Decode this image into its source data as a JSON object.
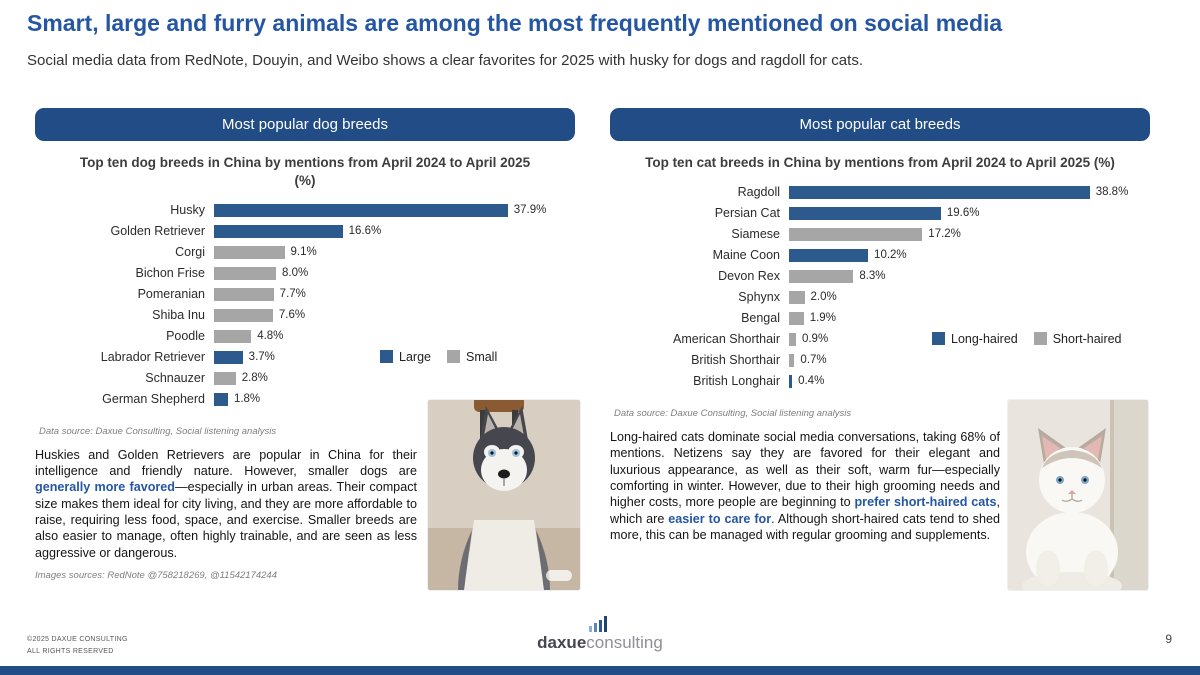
{
  "colors": {
    "title_blue": "#2456A4",
    "banner_navy": "#224C85",
    "bar_blue": "#2C5A8C",
    "bar_gray": "#A6A6A6",
    "highlight_blue": "#2456A4",
    "bottom_bar": "#224C85"
  },
  "header": {
    "title": "Smart, large and furry animals are among the most frequently mentioned on social media",
    "subtitle": "Social media data from RedNote, Douyin, and Weibo shows a clear favorites for 2025 with husky for dogs and ragdoll for cats."
  },
  "dogs": {
    "banner": "Most popular dog breeds",
    "data_source": "Data source: Daxue Consulting, Social listening analysis",
    "images_source": "Images sources: RedNote @758218269, @11542174244",
    "paragraph": [
      {
        "t": "Huskies and Golden Retrievers are popular in China for their intelligence and friendly nature. However, smaller dogs are ",
        "b": false
      },
      {
        "t": "generally more favored",
        "b": true
      },
      {
        "t": "—especially in urban areas. Their compact size makes them ideal for city living, and they are more affordable to raise, requiring less food, space, and exercise. Smaller breeds are also easier to manage, often highly trainable, and are seen as less aggressive or dangerous.",
        "b": false
      }
    ]
  },
  "cats": {
    "banner": "Most popular cat breeds",
    "data_source": "Data source: Daxue Consulting, Social listening analysis",
    "paragraph": [
      {
        "t": "Long-haired cats dominate social media conversations, taking 68% of mentions. Netizens say they are favored for their elegant and luxurious appearance, as well as their soft, warm fur—especially comforting in winter. However, due to their high grooming needs and higher costs, more people are beginning to ",
        "b": false
      },
      {
        "t": "prefer short-haired cats",
        "b": true
      },
      {
        "t": ", which are ",
        "b": false
      },
      {
        "t": "easier to care for",
        "b": true
      },
      {
        "t": ". Although short-haired cats tend to shed more, this can be managed with regular grooming and supplements.",
        "b": false
      }
    ]
  },
  "chart_data": [
    {
      "type": "bar",
      "orientation": "horizontal",
      "title": "Top ten dog breeds in China by mentions from April 2024 to April 2025 (%)",
      "categories": [
        "Husky",
        "Golden Retriever",
        "Corgi",
        "Bichon Frise",
        "Pomeranian",
        "Shiba Inu",
        "Poodle",
        "Labrador Retriever",
        "Schnauzer",
        "German Shepherd"
      ],
      "values": [
        37.9,
        16.6,
        9.1,
        8.0,
        7.7,
        7.6,
        4.8,
        3.7,
        2.8,
        1.8
      ],
      "groups": [
        "Large",
        "Large",
        "Small",
        "Small",
        "Small",
        "Small",
        "Small",
        "Large",
        "Small",
        "Large"
      ],
      "legend": [
        "Large",
        "Small"
      ],
      "group_colors": {
        "Large": "#2C5A8C",
        "Small": "#A6A6A6"
      },
      "xmax": 40,
      "value_suffix": "%",
      "grid": false,
      "legend_position": "right-middle"
    },
    {
      "type": "bar",
      "orientation": "horizontal",
      "title": "Top ten cat breeds in China by mentions from April 2024 to April 2025 (%)",
      "categories": [
        "Ragdoll",
        "Persian Cat",
        "Siamese",
        "Maine Coon",
        "Devon Rex",
        "Sphynx",
        "Bengal",
        "American Shorthair",
        "British Shorthair",
        "British Longhair"
      ],
      "values": [
        38.8,
        19.6,
        17.2,
        10.2,
        8.3,
        2.0,
        1.9,
        0.9,
        0.7,
        0.4
      ],
      "groups": [
        "Long-haired",
        "Long-haired",
        "Short-haired",
        "Long-haired",
        "Short-haired",
        "Short-haired",
        "Short-haired",
        "Short-haired",
        "Short-haired",
        "Long-haired"
      ],
      "legend": [
        "Long-haired",
        "Short-haired"
      ],
      "group_colors": {
        "Long-haired": "#2C5A8C",
        "Short-haired": "#A6A6A6"
      },
      "xmax": 40,
      "value_suffix": "%",
      "grid": false,
      "legend_position": "right-middle"
    }
  ],
  "footer": {
    "copyright_line1": "©2025 DAXUE CONSULTING",
    "copyright_line2": "ALL RIGHTS RESERVED",
    "logo_text_bold": "daxue",
    "logo_text_light": "consulting",
    "page_number": "9"
  }
}
